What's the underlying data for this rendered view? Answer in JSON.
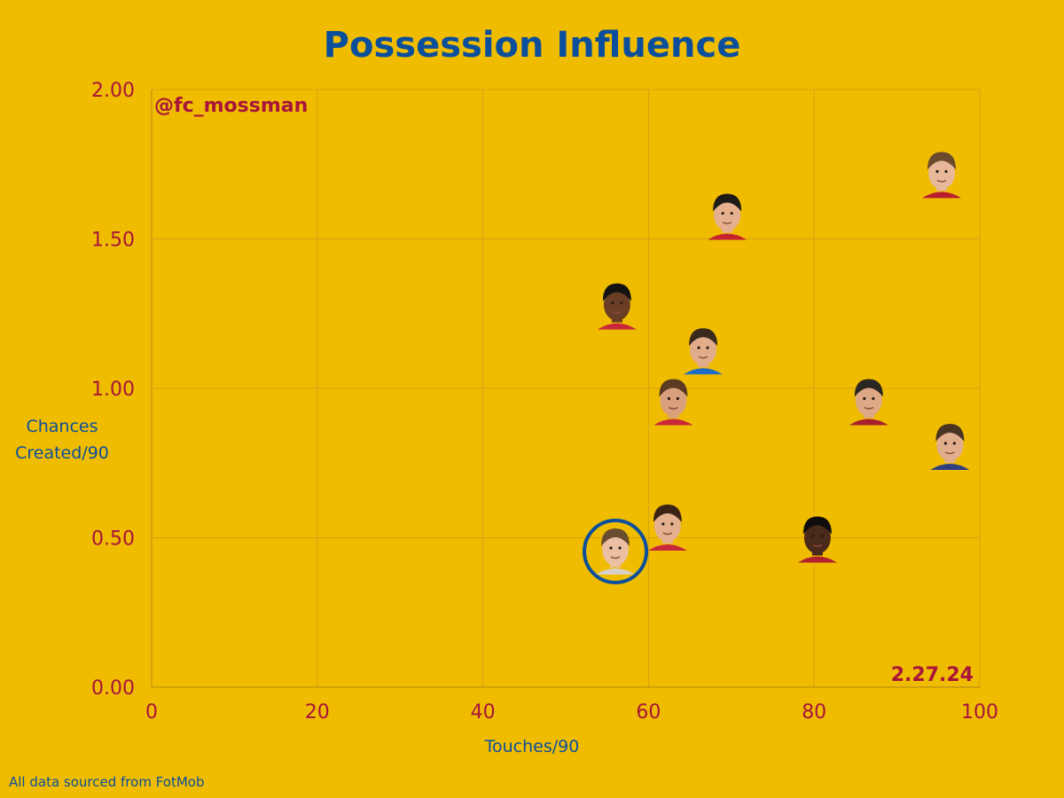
{
  "chart_data": {
    "type": "scatter",
    "title": "Possession Influence",
    "xlabel": "Touches/90",
    "ylabel_lines": [
      "Chances",
      "Created/90"
    ],
    "xlim": [
      0,
      100
    ],
    "ylim": [
      0,
      2
    ],
    "xticks": [
      0,
      20,
      40,
      60,
      80,
      100
    ],
    "xtick_labels": [
      "0",
      "20",
      "40",
      "60",
      "80",
      "100"
    ],
    "yticks": [
      0,
      0.5,
      1,
      1.5,
      2
    ],
    "ytick_labels": [
      "0.00",
      "0.50",
      "1.00",
      "1.50",
      "2.00"
    ],
    "grid": true,
    "points": [
      {
        "x": 95.4,
        "y": 1.72
      },
      {
        "x": 69.5,
        "y": 1.58
      },
      {
        "x": 56.2,
        "y": 1.28
      },
      {
        "x": 66.6,
        "y": 1.13
      },
      {
        "x": 63.0,
        "y": 0.96
      },
      {
        "x": 86.6,
        "y": 0.96
      },
      {
        "x": 96.4,
        "y": 0.81
      },
      {
        "x": 62.3,
        "y": 0.54
      },
      {
        "x": 80.4,
        "y": 0.5
      },
      {
        "x": 56.0,
        "y": 0.46,
        "highlighted": true
      }
    ],
    "annotations": {
      "handle": "@fc_mossman",
      "date": "2.27.24",
      "source": "All data sourced from FotMob"
    }
  },
  "colors": {
    "background": "#EFBC00",
    "title": "#0B4F9C",
    "tick": "#A8153A",
    "grid": "#D9A21A",
    "highlight_ring": "#0B4F9C"
  }
}
